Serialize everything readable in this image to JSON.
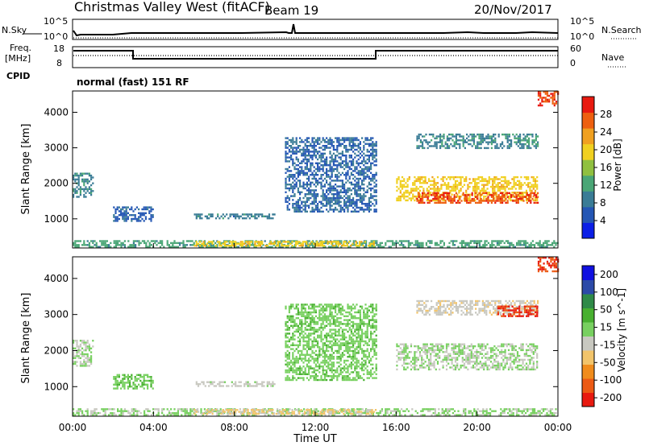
{
  "header": {
    "station": "Christmas Valley West (fitACF)",
    "beam": "Beam 19",
    "date": "20/Nov/2017"
  },
  "strip": {
    "nsky_label": "N.Sky",
    "nsearch_label": "N.Search",
    "freq_label_1": "Freq.",
    "freq_label_2": "[MHz]",
    "nave_label": "Nave",
    "cpid_label": "CPID",
    "cpid_value": "normal (fast) 151 RF",
    "noise_ticks": [
      "10^5",
      "10^0"
    ],
    "freq_ticks": [
      "18",
      "8"
    ],
    "nave_ticks": [
      "60",
      "0"
    ]
  },
  "colors": {
    "power": [
      "#0a1ee6",
      "#2456b4",
      "#3a7c96",
      "#4aa676",
      "#90c040",
      "#f0d020",
      "#f0a020",
      "#ee6010",
      "#e81a10"
    ],
    "velocity": [
      "#e81a10",
      "#ec5a14",
      "#f08c1c",
      "#f2c46a",
      "#c8c8c0",
      "#78d060",
      "#48b030",
      "#2f8a48",
      "#2c4aa8",
      "#1010e0"
    ]
  },
  "chart_data": [
    {
      "type": "heatmap",
      "title": "",
      "xlabel": "Time UT",
      "ylabel": "Slant Range [km]",
      "xlim": [
        "00:00",
        "24:00"
      ],
      "ylim": [
        180,
        4600
      ],
      "x_ticks": [
        "00:00",
        "04:00",
        "08:00",
        "12:00",
        "16:00",
        "20:00",
        "00:00"
      ],
      "y_ticks": [
        1000,
        2000,
        3000,
        4000
      ],
      "colorbar": {
        "label": "Power [dB]",
        "ticks": [
          4,
          8,
          12,
          16,
          20,
          24,
          28
        ],
        "range": [
          0,
          32
        ]
      },
      "features": [
        {
          "t_start": 0.0,
          "t_end": 24.0,
          "range_start": 200,
          "range_end": 400,
          "value": 12
        },
        {
          "t_start": 6.0,
          "t_end": 15.0,
          "range_start": 220,
          "range_end": 380,
          "value": 20
        },
        {
          "t_start": 0.0,
          "t_end": 1.0,
          "range_start": 1600,
          "range_end": 2300,
          "value": 10
        },
        {
          "t_start": 2.0,
          "t_end": 4.0,
          "range_start": 950,
          "range_end": 1350,
          "value": 6
        },
        {
          "t_start": 6.0,
          "t_end": 10.0,
          "range_start": 1000,
          "range_end": 1150,
          "value": 9
        },
        {
          "t_start": 10.5,
          "t_end": 15.0,
          "range_start": 1200,
          "range_end": 3300,
          "value": 7
        },
        {
          "t_start": 16.0,
          "t_end": 23.0,
          "range_start": 1500,
          "range_end": 2200,
          "value": 20
        },
        {
          "t_start": 17.0,
          "t_end": 23.0,
          "range_start": 1450,
          "range_end": 1750,
          "value": 28
        },
        {
          "t_start": 17.0,
          "t_end": 23.0,
          "range_start": 3000,
          "range_end": 3400,
          "value": 10
        },
        {
          "t_start": 23.0,
          "t_end": 24.0,
          "range_start": 4200,
          "range_end": 4600,
          "value": 28
        }
      ]
    },
    {
      "type": "heatmap",
      "title": "",
      "xlabel": "Time UT",
      "ylabel": "Slant Range [km]",
      "xlim": [
        "00:00",
        "24:00"
      ],
      "ylim": [
        180,
        4600
      ],
      "x_ticks": [
        "00:00",
        "04:00",
        "08:00",
        "12:00",
        "16:00",
        "20:00",
        "00:00"
      ],
      "y_ticks": [
        1000,
        2000,
        3000,
        4000
      ],
      "colorbar": {
        "label": "Velocity [m s^-1]",
        "ticks": [
          200,
          100,
          50,
          15,
          -15,
          -50,
          -100,
          -200
        ],
        "range": [
          -250,
          250
        ]
      },
      "features": [
        {
          "t_start": 0.0,
          "t_end": 24.0,
          "range_start": 200,
          "range_end": 400,
          "value": 10
        },
        {
          "t_start": 6.0,
          "t_end": 15.0,
          "range_start": 220,
          "range_end": 380,
          "value": -60
        },
        {
          "t_start": 0.0,
          "t_end": 1.0,
          "range_start": 1600,
          "range_end": 2300,
          "value": 0
        },
        {
          "t_start": 2.0,
          "t_end": 4.0,
          "range_start": 950,
          "range_end": 1350,
          "value": 40
        },
        {
          "t_start": 6.0,
          "t_end": 10.0,
          "range_start": 1000,
          "range_end": 1150,
          "value": -20
        },
        {
          "t_start": 10.5,
          "t_end": 15.0,
          "range_start": 1200,
          "range_end": 3300,
          "value": 30
        },
        {
          "t_start": 16.0,
          "t_end": 23.0,
          "range_start": 1500,
          "range_end": 2200,
          "value": 0
        },
        {
          "t_start": 17.0,
          "t_end": 23.0,
          "range_start": 3000,
          "range_end": 3400,
          "value": -30
        },
        {
          "t_start": 21.0,
          "t_end": 23.0,
          "range_start": 2950,
          "range_end": 3250,
          "value": -200
        },
        {
          "t_start": 23.0,
          "t_end": 24.0,
          "range_start": 4200,
          "range_end": 4600,
          "value": -200
        }
      ]
    }
  ]
}
